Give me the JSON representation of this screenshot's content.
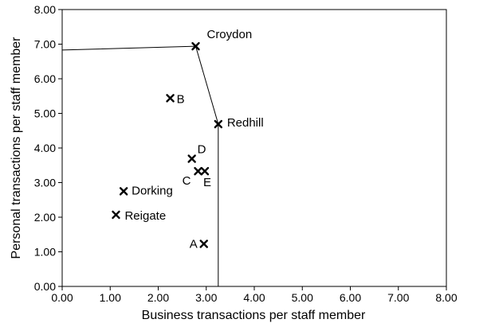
{
  "chart_data": {
    "type": "scatter",
    "title": "",
    "xlabel": "Business transactions per staff member",
    "ylabel": "Personal transactions per staff member",
    "xlim": [
      0,
      8
    ],
    "ylim": [
      0,
      8
    ],
    "x_ticks": [
      "0.00",
      "1.00",
      "2.00",
      "3.00",
      "4.00",
      "5.00",
      "6.00",
      "7.00",
      "8.00"
    ],
    "y_ticks": [
      "0.00",
      "1.00",
      "2.00",
      "3.00",
      "4.00",
      "5.00",
      "6.00",
      "7.00",
      "8.00"
    ],
    "grid": false,
    "points": [
      {
        "label": "Croydon",
        "x": 2.78,
        "y": 6.94
      },
      {
        "label": "B",
        "x": 2.25,
        "y": 5.44
      },
      {
        "label": "Redhill",
        "x": 3.25,
        "y": 4.69
      },
      {
        "label": "D",
        "x": 2.7,
        "y": 3.69
      },
      {
        "label": "C",
        "x": 2.83,
        "y": 3.33
      },
      {
        "label": "E",
        "x": 2.97,
        "y": 3.33
      },
      {
        "label": "Dorking",
        "x": 1.28,
        "y": 2.75
      },
      {
        "label": "Reigate",
        "x": 1.12,
        "y": 2.07
      },
      {
        "label": "A",
        "x": 2.95,
        "y": 1.23
      }
    ],
    "frontier": [
      {
        "x": 0.0,
        "y": 6.83
      },
      {
        "x": 2.78,
        "y": 6.94
      },
      {
        "x": 3.25,
        "y": 4.69
      },
      {
        "x": 3.25,
        "y": 0.0
      }
    ]
  }
}
